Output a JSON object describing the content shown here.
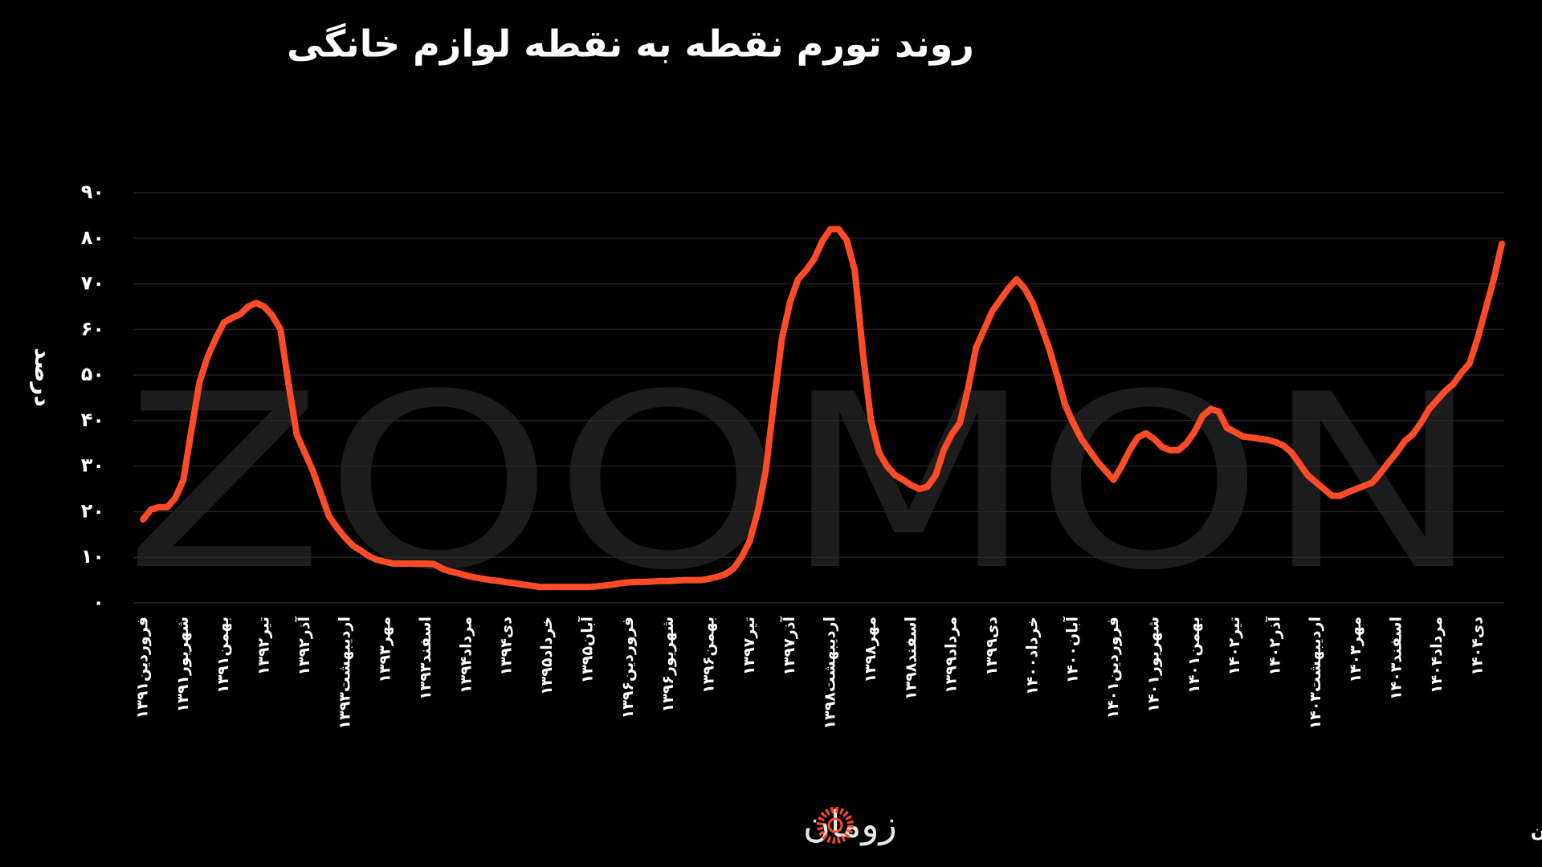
{
  "chart_data": {
    "type": "line",
    "title": "روند تورم نقطه به نقطه لوازم خانگی",
    "y_label": "درصد",
    "watermark": "ZOOMON",
    "source": "منبع: مرکز آمار ایران",
    "logo": "زومان",
    "color": "#ff4b26",
    "grid": true,
    "ylim": [
      0,
      90
    ],
    "yticks": [
      {
        "value": 0,
        "label": "۰"
      },
      {
        "value": 10,
        "label": "۱۰"
      },
      {
        "value": 20,
        "label": "۲۰"
      },
      {
        "value": 30,
        "label": "۳۰"
      },
      {
        "value": 40,
        "label": "۴۰"
      },
      {
        "value": 50,
        "label": "۵۰"
      },
      {
        "value": 60,
        "label": "۶۰"
      },
      {
        "value": 70,
        "label": "۷۰"
      },
      {
        "value": 80,
        "label": "۸۰"
      },
      {
        "value": 90,
        "label": "۹۰"
      }
    ],
    "categories": [
      "فروردین۱۳۹۱",
      null,
      null,
      null,
      null,
      "شهریور۱۳۹۱",
      null,
      null,
      null,
      null,
      "بهمن۱۳۹۱",
      null,
      null,
      null,
      null,
      "تیر۱۳۹۲",
      null,
      null,
      null,
      null,
      "آذر۱۳۹۲",
      null,
      null,
      null,
      null,
      "اردیبهشت۱۳۹۳",
      null,
      null,
      null,
      null,
      "مهر۱۳۹۳",
      null,
      null,
      null,
      null,
      "اسفند۱۳۹۳",
      null,
      null,
      null,
      null,
      "مرداد۱۳۹۴",
      null,
      null,
      null,
      null,
      "دی۱۳۹۴",
      null,
      null,
      null,
      null,
      "خرداد۱۳۹۵",
      null,
      null,
      null,
      null,
      "آبان۱۳۹۵",
      null,
      null,
      null,
      null,
      "فروردین۱۳۹۶",
      null,
      null,
      null,
      null,
      "شهریور۱۳۹۶",
      null,
      null,
      null,
      null,
      "بهمن۱۳۹۶",
      null,
      null,
      null,
      null,
      "تیر۱۳۹۷",
      null,
      null,
      null,
      null,
      "آذر۱۳۹۷",
      null,
      null,
      null,
      null,
      "اردیبهشت۱۳۹۸",
      null,
      null,
      null,
      null,
      "مهر۱۳۹۸",
      null,
      null,
      null,
      null,
      "اسفند۱۳۹۸",
      null,
      null,
      null,
      null,
      "مرداد۱۳۹۹",
      null,
      null,
      null,
      null,
      "دی۱۳۹۹",
      null,
      null,
      null,
      null,
      "خرداد۱۴۰۰",
      null,
      null,
      null,
      null,
      "آبان۱۴۰۰",
      null,
      null,
      null,
      null,
      "فروردین۱۴۰۱",
      null,
      null,
      null,
      null,
      "شهریور۱۴۰۱",
      null,
      null,
      null,
      null,
      "بهمن۱۴۰۱",
      null,
      null,
      null,
      null,
      "تیر۱۴۰۲",
      null,
      null,
      null,
      null,
      "آذر۱۴۰۲",
      null,
      null,
      null,
      null,
      "اردیبهشت۱۴۰۳",
      null,
      null,
      null,
      null,
      "مهر۱۴۰۳",
      null,
      null,
      null,
      null,
      "اسفند۱۴۰۳",
      null,
      null,
      null,
      null,
      "مرداد۱۴۰۴",
      null,
      null,
      null,
      null,
      "دی۱۴۰۴",
      null,
      null,
      null
    ],
    "values": [
      18.3,
      20.5,
      21,
      21,
      23,
      27,
      38,
      48.5,
      54,
      58,
      61.5,
      62.5,
      63.3,
      65,
      65.8,
      65,
      63,
      60,
      48,
      37,
      33,
      29,
      24,
      19,
      16.5,
      14.3,
      12.5,
      11.4,
      10.2,
      9.4,
      9,
      8.6,
      8.6,
      8.6,
      8.6,
      8.6,
      8.5,
      7.5,
      6.9,
      6.5,
      6,
      5.6,
      5.3,
      5,
      4.8,
      4.5,
      4.3,
      4,
      3.8,
      3.5,
      3.5,
      3.5,
      3.5,
      3.5,
      3.5,
      3.5,
      3.6,
      3.8,
      4,
      4.3,
      4.5,
      4.6,
      4.6,
      4.7,
      4.8,
      4.8,
      4.9,
      5,
      5,
      5,
      5.3,
      5.7,
      6.3,
      7.5,
      10,
      13.5,
      20,
      29,
      44,
      58,
      66,
      71,
      73,
      75.5,
      79.4,
      82,
      82,
      79.6,
      73,
      55,
      40,
      33,
      30,
      28,
      27,
      25.8,
      25,
      25.5,
      28,
      33.5,
      37,
      39.5,
      47,
      56,
      60,
      64,
      66.5,
      69,
      71,
      69,
      65.8,
      61,
      56,
      50,
      43.5,
      39.5,
      36,
      33.5,
      31,
      29,
      27,
      30,
      33.5,
      36.3,
      37.2,
      36,
      34.2,
      33.5,
      33.5,
      35,
      37.5,
      41,
      42.5,
      42,
      38.4,
      37.5,
      36.5,
      36.3,
      36,
      35.8,
      35.3,
      34.5,
      33,
      30.5,
      28,
      26.5,
      25,
      23.5,
      23.5,
      24.3,
      25,
      25.7,
      26.4,
      28.5,
      30.8,
      33,
      35.5,
      37,
      39.5,
      42.5,
      44.5,
      46.5,
      48,
      50.5,
      52.5,
      58,
      64.5,
      71,
      78.8
    ]
  }
}
